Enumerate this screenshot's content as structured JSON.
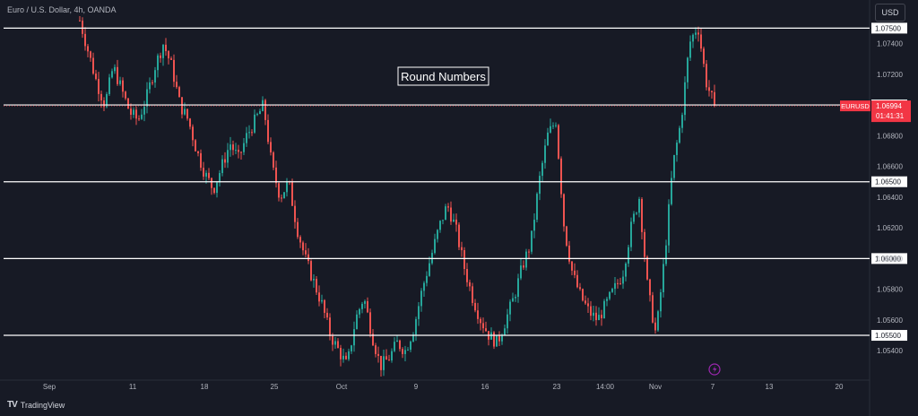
{
  "header": {
    "symbol_description": "Euro / U.S. Dollar, 4h, OANDA",
    "currency_button": "USD"
  },
  "footer": {
    "brand": "TradingView"
  },
  "colors": {
    "background": "#171a25",
    "up": "#26a69a",
    "down": "#ef5350",
    "level_line": "#ffffff",
    "price_label": "#f23645",
    "axis_text": "#b2b5be",
    "event_icon": "#9c27b0"
  },
  "chart_data": {
    "type": "candlestick",
    "title": "Round Numbers",
    "instrument_label": "EURUSD",
    "current_price": "1.06994",
    "countdown": "01:41:31",
    "ylim": [
      1.0522,
      1.0766
    ],
    "y_ticks": [
      "1.05400",
      "1.05600",
      "1.05800",
      "1.06000",
      "1.06200",
      "1.06400",
      "1.06600",
      "1.06800",
      "1.07000",
      "1.07200",
      "1.07400"
    ],
    "x_ticks": [
      "Sep",
      "11",
      "18",
      "25",
      "Oct",
      "9",
      "16",
      "23",
      "14:00",
      "Nov",
      "7",
      "13",
      "20"
    ],
    "horizontal_levels": [
      {
        "label": "1.07500",
        "value": 1.075
      },
      {
        "label": "1.07000",
        "value": 1.07
      },
      {
        "label": "1.06500",
        "value": 1.065
      },
      {
        "label": "1.06000",
        "value": 1.06
      },
      {
        "label": "1.05500",
        "value": 1.055
      }
    ],
    "price_path": [
      1.0755,
      1.0735,
      1.0715,
      1.07,
      1.0725,
      1.071,
      1.0695,
      1.069,
      1.0705,
      1.0725,
      1.074,
      1.0725,
      1.07,
      1.069,
      1.067,
      1.0655,
      1.0645,
      1.066,
      1.0675,
      1.0665,
      1.068,
      1.069,
      1.07,
      1.066,
      1.064,
      1.065,
      1.062,
      1.06,
      1.0585,
      1.057,
      1.055,
      1.054,
      1.053,
      1.056,
      1.0575,
      1.055,
      1.053,
      1.0535,
      1.0545,
      1.054,
      1.0555,
      1.058,
      1.06,
      1.062,
      1.0635,
      1.062,
      1.0595,
      1.0575,
      1.056,
      1.055,
      1.0545,
      1.056,
      1.0575,
      1.0595,
      1.061,
      1.065,
      1.068,
      1.069,
      1.062,
      1.059,
      1.0575,
      1.0565,
      1.056,
      1.057,
      1.058,
      1.059,
      1.062,
      1.064,
      1.058,
      1.055,
      1.06,
      1.066,
      1.069,
      1.074,
      1.0752,
      1.0715,
      1.06994
    ]
  }
}
